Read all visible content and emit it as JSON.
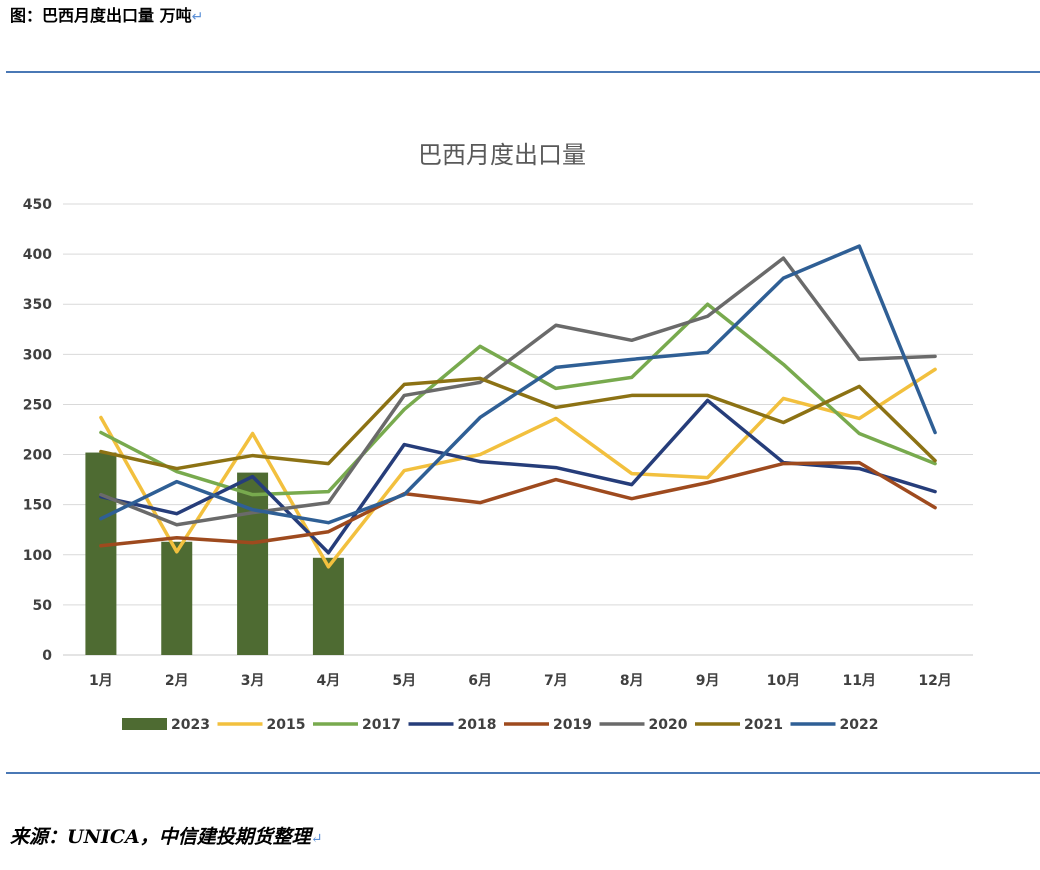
{
  "figure": {
    "title": "图：巴西月度出口量 万吨",
    "return_mark": "↵",
    "source": "来源：UNICA，中信建投期货整理"
  },
  "chart_data": {
    "type": "line",
    "title": "巴西月度出口量",
    "xlabel": "",
    "ylabel": "",
    "categories": [
      "1月",
      "2月",
      "3月",
      "4月",
      "5月",
      "6月",
      "7月",
      "8月",
      "9月",
      "10月",
      "11月",
      "12月"
    ],
    "ylim": [
      0,
      450
    ],
    "yticks": [
      0,
      50,
      100,
      150,
      200,
      250,
      300,
      350,
      400,
      450
    ],
    "grid": true,
    "legend_position": "bottom",
    "bar_series": {
      "name": "2023",
      "color": "#4e6b32",
      "values": [
        202,
        113,
        182,
        97
      ]
    },
    "series": [
      {
        "name": "2015",
        "color": "#f2c03e",
        "values": [
          237,
          103,
          221,
          88,
          184,
          200,
          236,
          181,
          177,
          256,
          236,
          285
        ]
      },
      {
        "name": "2017",
        "color": "#78aa4e",
        "values": [
          222,
          183,
          160,
          163,
          245,
          308,
          266,
          277,
          350,
          290,
          221,
          191
        ]
      },
      {
        "name": "2018",
        "color": "#263d7a",
        "values": [
          158,
          141,
          178,
          102,
          210,
          193,
          187,
          170,
          254,
          192,
          186,
          163
        ]
      },
      {
        "name": "2019",
        "color": "#9e4a1e",
        "values": [
          109,
          117,
          112,
          123,
          161,
          152,
          175,
          156,
          172,
          191,
          192,
          147
        ]
      },
      {
        "name": "2020",
        "color": "#6a6a6a",
        "values": [
          160,
          130,
          142,
          152,
          259,
          272,
          329,
          314,
          338,
          396,
          295,
          298
        ]
      },
      {
        "name": "2021",
        "color": "#8c7214",
        "values": [
          203,
          186,
          199,
          191,
          270,
          276,
          247,
          259,
          259,
          232,
          268,
          194
        ]
      },
      {
        "name": "2022",
        "color": "#2f5f95",
        "values": [
          136,
          173,
          145,
          132,
          160,
          237,
          287,
          295,
          302,
          376,
          408,
          222
        ]
      }
    ]
  }
}
